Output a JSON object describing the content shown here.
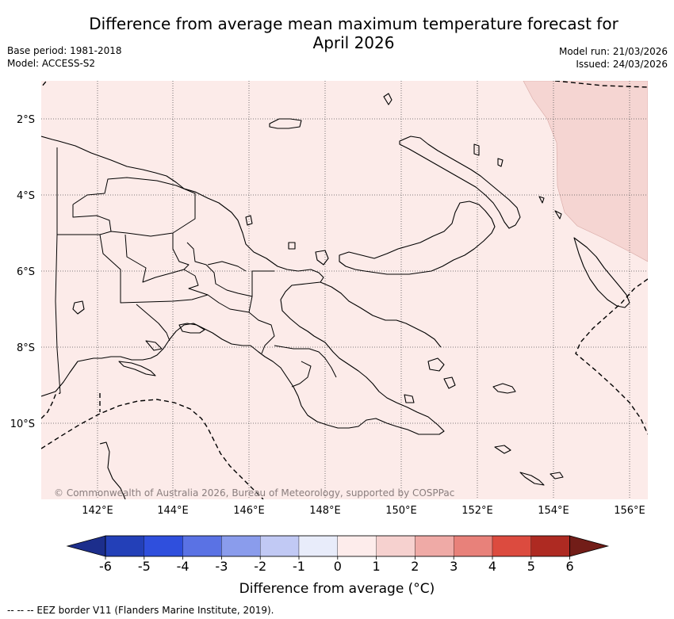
{
  "header": {
    "title_line1": "Difference from average mean maximum temperature forecast for",
    "title_line2": "April 2026",
    "base_period": "Base period: 1981-2018",
    "model": "Model: ACCESS-S2",
    "model_run": "Model run: 21/03/2026",
    "issued": "Issued: 24/03/2026"
  },
  "map": {
    "lat_labels": [
      "2°S",
      "4°S",
      "6°S",
      "8°S",
      "10°S"
    ],
    "lon_labels": [
      "142°E",
      "144°E",
      "146°E",
      "148°E",
      "150°E",
      "152°E",
      "154°E",
      "156°E"
    ],
    "copyright": "© Commonwealth of Australia 2026, Bureau of Meteorology, supported by COSPPac",
    "base_fill_color": "#fcebe9",
    "warm_fill_color": "#f5d5d2"
  },
  "colorbar": {
    "tick_labels": [
      "-6",
      "-5",
      "-4",
      "-3",
      "-2",
      "-1",
      "0",
      "1",
      "2",
      "3",
      "4",
      "5",
      "6"
    ],
    "colors": [
      "#1c2e8c",
      "#2340b8",
      "#2f4fdd",
      "#5a72e4",
      "#8a9cec",
      "#c1c9f4",
      "#e8ecfa",
      "#fdeceb",
      "#f6d1cf",
      "#efaaa6",
      "#e8817a",
      "#dc4b3f",
      "#ae2a22",
      "#721d18"
    ],
    "label": "Difference from average (°C)"
  },
  "footer": {
    "eez_note": "-- -- -- EEZ border V11 (Flanders Marine Institute, 2019)."
  }
}
